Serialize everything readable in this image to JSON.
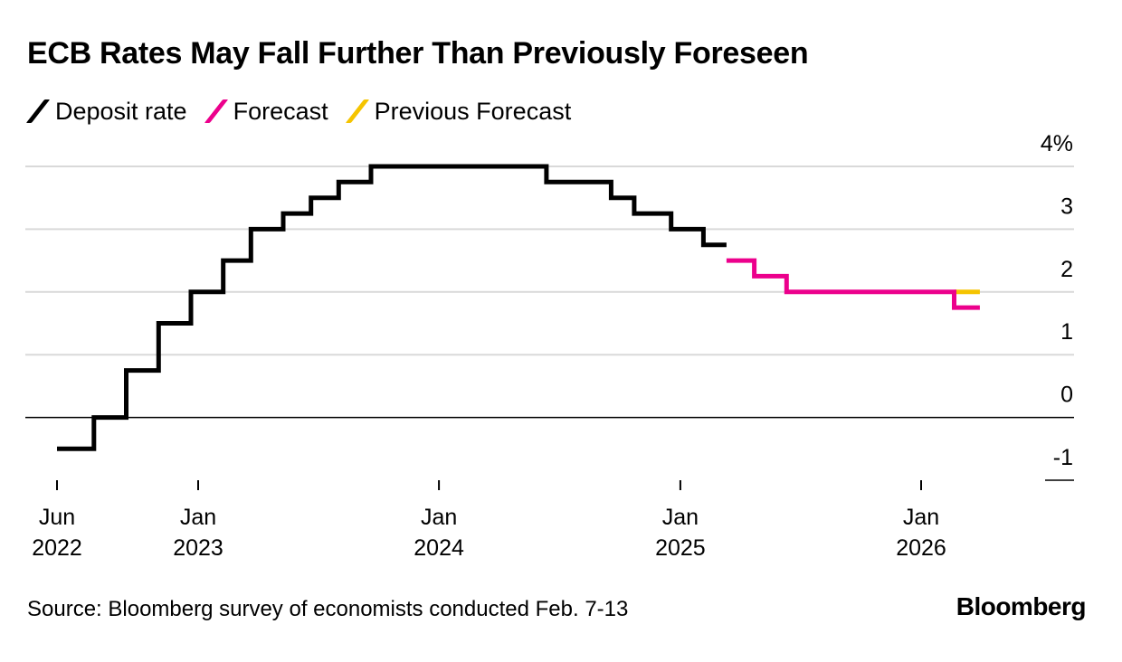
{
  "title": "ECB Rates May Fall Further Than Previously Foreseen",
  "legend": [
    {
      "label": "Deposit rate",
      "color": "#000000"
    },
    {
      "label": "Forecast",
      "color": "#ec008c"
    },
    {
      "label": "Previous Forecast",
      "color": "#f5c400"
    }
  ],
  "source": "Source: Bloomberg survey of economists conducted Feb. 7-13",
  "brand": "Bloomberg",
  "chart_data": {
    "type": "line",
    "step": true,
    "title": "ECB Rates May Fall Further Than Previously Foreseen",
    "xlabel": "",
    "ylabel": "",
    "ylim": [
      -1,
      4
    ],
    "y_ticks": [
      {
        "value": 4,
        "label": "4%"
      },
      {
        "value": 3,
        "label": "3"
      },
      {
        "value": 2,
        "label": "2"
      },
      {
        "value": 1,
        "label": "1"
      },
      {
        "value": 0,
        "label": "0"
      },
      {
        "value": -1,
        "label": "-1"
      }
    ],
    "x_ticks": [
      {
        "date": "2022-06-01",
        "line1": "Jun",
        "line2": "2022"
      },
      {
        "date": "2023-01-01",
        "line1": "Jan",
        "line2": "2023"
      },
      {
        "date": "2024-01-01",
        "line1": "Jan",
        "line2": "2024"
      },
      {
        "date": "2025-01-01",
        "line1": "Jan",
        "line2": "2025"
      },
      {
        "date": "2026-01-01",
        "line1": "Jan",
        "line2": "2026"
      }
    ],
    "grid": true,
    "legend_position": "top-left",
    "series": [
      {
        "name": "Deposit rate",
        "color": "#000000",
        "points": [
          [
            "2022-06-01",
            -0.5
          ],
          [
            "2022-07-27",
            0
          ],
          [
            "2022-09-14",
            0.75
          ],
          [
            "2022-11-02",
            1.5
          ],
          [
            "2022-12-21",
            2
          ],
          [
            "2023-02-08",
            2.5
          ],
          [
            "2023-03-22",
            3
          ],
          [
            "2023-05-10",
            3.25
          ],
          [
            "2023-06-21",
            3.5
          ],
          [
            "2023-08-02",
            3.75
          ],
          [
            "2023-09-20",
            4
          ],
          [
            "2024-06-12",
            3.75
          ],
          [
            "2024-09-18",
            3.5
          ],
          [
            "2024-10-23",
            3.25
          ],
          [
            "2024-12-18",
            3
          ],
          [
            "2025-02-05",
            2.75
          ],
          [
            "2025-03-12",
            2.75
          ]
        ]
      },
      {
        "name": "Forecast",
        "color": "#ec008c",
        "points": [
          [
            "2025-03-12",
            2.5
          ],
          [
            "2025-04-23",
            2.25
          ],
          [
            "2025-06-11",
            2
          ],
          [
            "2026-02-20",
            1.75
          ],
          [
            "2026-03-31",
            1.75
          ]
        ]
      },
      {
        "name": "Previous Forecast",
        "color": "#f5c400",
        "points": [
          [
            "2026-02-20",
            2
          ],
          [
            "2026-03-31",
            2
          ]
        ]
      }
    ]
  }
}
